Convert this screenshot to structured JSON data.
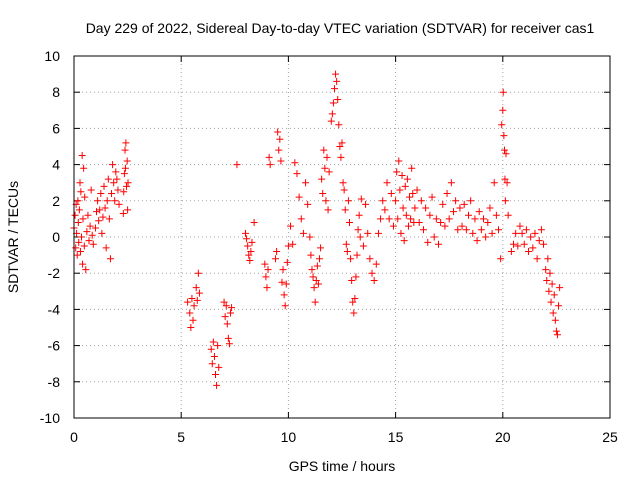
{
  "chart_data": {
    "type": "scatter",
    "title": "Day 229 of 2022, Sidereal Day-to-day VTEC variation (SDTVAR) for receiver cas1",
    "xlabel": "GPS time / hours",
    "ylabel": "SDTVAR / TECUs",
    "xlim": [
      0,
      25
    ],
    "ylim": [
      -10,
      10
    ],
    "xticks": [
      0,
      5,
      10,
      15,
      20,
      25
    ],
    "yticks": [
      -10,
      -8,
      -6,
      -4,
      -2,
      0,
      2,
      4,
      6,
      8,
      10
    ],
    "grid": true,
    "marker": "+",
    "color": "#ff0000",
    "series": [
      {
        "name": "cas1",
        "points": [
          [
            0.0,
            0.5
          ],
          [
            0.05,
            1.2
          ],
          [
            0.08,
            -0.6
          ],
          [
            0.1,
            1.8
          ],
          [
            0.12,
            0.2
          ],
          [
            0.15,
            -1.0
          ],
          [
            0.18,
            2.0
          ],
          [
            0.2,
            0.8
          ],
          [
            0.22,
            -0.3
          ],
          [
            0.25,
            1.5
          ],
          [
            0.28,
            3.0
          ],
          [
            0.3,
            -0.8
          ],
          [
            0.32,
            2.5
          ],
          [
            0.35,
            0.0
          ],
          [
            0.38,
            4.5
          ],
          [
            0.4,
            -1.5
          ],
          [
            0.42,
            1.0
          ],
          [
            0.45,
            3.8
          ],
          [
            0.48,
            -0.5
          ],
          [
            0.5,
            2.2
          ],
          [
            0.55,
            -1.8
          ],
          [
            0.6,
            0.3
          ],
          [
            0.65,
            1.2
          ],
          [
            0.7,
            -0.2
          ],
          [
            0.75,
            0.6
          ],
          [
            0.8,
            2.6
          ],
          [
            0.85,
            0.1
          ],
          [
            0.9,
            -0.4
          ],
          [
            1.0,
            0.5
          ],
          [
            1.05,
            1.4
          ],
          [
            1.1,
            2.0
          ],
          [
            1.15,
            0.9
          ],
          [
            1.2,
            1.5
          ],
          [
            1.25,
            2.4
          ],
          [
            1.3,
            0.2
          ],
          [
            1.35,
            1.1
          ],
          [
            1.4,
            2.8
          ],
          [
            1.45,
            1.6
          ],
          [
            1.5,
            -0.6
          ],
          [
            1.55,
            2.0
          ],
          [
            1.6,
            3.2
          ],
          [
            1.65,
            1.0
          ],
          [
            1.7,
            -1.2
          ],
          [
            1.75,
            2.4
          ],
          [
            1.8,
            4.0
          ],
          [
            1.85,
            3.0
          ],
          [
            1.9,
            2.0
          ],
          [
            1.95,
            3.6
          ],
          [
            2.0,
            3.2
          ],
          [
            2.05,
            2.6
          ],
          [
            2.1,
            1.8
          ],
          [
            2.3,
            1.3
          ],
          [
            2.32,
            2.5
          ],
          [
            2.35,
            3.5
          ],
          [
            2.38,
            4.8
          ],
          [
            2.4,
            3.8
          ],
          [
            2.42,
            5.2
          ],
          [
            2.45,
            2.8
          ],
          [
            2.48,
            4.2
          ],
          [
            2.5,
            1.5
          ],
          [
            2.52,
            3.0
          ],
          [
            5.3,
            -3.6
          ],
          [
            5.4,
            -4.2
          ],
          [
            5.45,
            -5.0
          ],
          [
            5.5,
            -3.4
          ],
          [
            5.55,
            -4.6
          ],
          [
            5.6,
            -3.8
          ],
          [
            5.7,
            -2.8
          ],
          [
            5.75,
            -3.5
          ],
          [
            5.8,
            -2.0
          ],
          [
            5.85,
            -3.1
          ],
          [
            6.4,
            -6.2
          ],
          [
            6.45,
            -7.0
          ],
          [
            6.5,
            -5.8
          ],
          [
            6.55,
            -6.6
          ],
          [
            6.6,
            -7.6
          ],
          [
            6.65,
            -8.2
          ],
          [
            6.7,
            -6.0
          ],
          [
            6.75,
            -7.2
          ],
          [
            7.0,
            -3.6
          ],
          [
            7.05,
            -4.4
          ],
          [
            7.1,
            -3.8
          ],
          [
            7.15,
            -4.8
          ],
          [
            7.2,
            -5.6
          ],
          [
            7.25,
            -5.9
          ],
          [
            7.3,
            -4.2
          ],
          [
            7.35,
            -3.9
          ],
          [
            7.6,
            4.0
          ],
          [
            8.0,
            0.2
          ],
          [
            8.05,
            -0.1
          ],
          [
            8.1,
            -0.5
          ],
          [
            8.15,
            -1.0
          ],
          [
            8.2,
            -1.3
          ],
          [
            8.25,
            -0.8
          ],
          [
            8.3,
            -0.3
          ],
          [
            8.4,
            0.8
          ],
          [
            8.9,
            -1.5
          ],
          [
            8.95,
            -2.2
          ],
          [
            9.0,
            -2.8
          ],
          [
            9.05,
            -1.8
          ],
          [
            9.1,
            4.4
          ],
          [
            9.15,
            4.0
          ],
          [
            9.4,
            -1.2
          ],
          [
            9.45,
            -0.8
          ],
          [
            9.5,
            5.8
          ],
          [
            9.55,
            4.8
          ],
          [
            9.6,
            5.4
          ],
          [
            9.65,
            4.2
          ],
          [
            9.7,
            -2.5
          ],
          [
            9.75,
            -1.8
          ],
          [
            9.8,
            -3.2
          ],
          [
            9.85,
            -3.8
          ],
          [
            9.9,
            -2.6
          ],
          [
            9.95,
            -1.4
          ],
          [
            10.0,
            -0.5
          ],
          [
            10.1,
            0.6
          ],
          [
            10.2,
            -0.4
          ],
          [
            10.3,
            4.1
          ],
          [
            10.4,
            3.5
          ],
          [
            10.5,
            2.2
          ],
          [
            10.6,
            1.0
          ],
          [
            10.7,
            0.2
          ],
          [
            10.8,
            3.0
          ],
          [
            10.9,
            1.8
          ],
          [
            11.0,
            0.0
          ],
          [
            11.05,
            -1.0
          ],
          [
            11.1,
            -1.8
          ],
          [
            11.15,
            -2.2
          ],
          [
            11.2,
            -2.8
          ],
          [
            11.25,
            -3.6
          ],
          [
            11.3,
            -2.4
          ],
          [
            11.35,
            -1.6
          ],
          [
            11.4,
            -2.6
          ],
          [
            11.45,
            -1.2
          ],
          [
            11.5,
            -0.6
          ],
          [
            11.55,
            3.2
          ],
          [
            11.6,
            2.4
          ],
          [
            11.65,
            4.8
          ],
          [
            11.7,
            3.8
          ],
          [
            11.75,
            2.0
          ],
          [
            11.8,
            4.4
          ],
          [
            11.85,
            1.5
          ],
          [
            11.9,
            3.6
          ],
          [
            12.0,
            6.4
          ],
          [
            12.05,
            6.8
          ],
          [
            12.1,
            7.4
          ],
          [
            12.15,
            8.2
          ],
          [
            12.2,
            9.0
          ],
          [
            12.25,
            8.6
          ],
          [
            12.3,
            7.6
          ],
          [
            12.35,
            6.2
          ],
          [
            12.4,
            5.0
          ],
          [
            12.45,
            4.4
          ],
          [
            12.5,
            5.2
          ],
          [
            12.55,
            3.0
          ],
          [
            12.6,
            2.6
          ],
          [
            12.65,
            1.5
          ],
          [
            12.7,
            -0.4
          ],
          [
            12.75,
            -0.8
          ],
          [
            12.8,
            2.0
          ],
          [
            12.85,
            0.8
          ],
          [
            12.9,
            -1.2
          ],
          [
            12.95,
            -2.4
          ],
          [
            13.0,
            -3.6
          ],
          [
            13.05,
            -4.2
          ],
          [
            13.1,
            -3.4
          ],
          [
            13.15,
            -2.2
          ],
          [
            13.2,
            -1.0
          ],
          [
            13.25,
            0.4
          ],
          [
            13.3,
            1.2
          ],
          [
            13.35,
            0.0
          ],
          [
            13.4,
            2.1
          ],
          [
            13.5,
            -0.5
          ],
          [
            13.6,
            1.8
          ],
          [
            13.7,
            0.2
          ],
          [
            13.8,
            -1.2
          ],
          [
            13.9,
            -2.0
          ],
          [
            14.0,
            -2.4
          ],
          [
            14.1,
            -1.5
          ],
          [
            14.2,
            0.2
          ],
          [
            14.3,
            1.0
          ],
          [
            14.4,
            2.0
          ],
          [
            14.5,
            1.5
          ],
          [
            14.6,
            3.0
          ],
          [
            14.7,
            1.0
          ],
          [
            14.8,
            2.4
          ],
          [
            14.9,
            0.6
          ],
          [
            15.0,
            2.0
          ],
          [
            15.05,
            3.6
          ],
          [
            15.1,
            1.0
          ],
          [
            15.15,
            4.2
          ],
          [
            15.2,
            2.6
          ],
          [
            15.25,
            0.2
          ],
          [
            15.3,
            3.4
          ],
          [
            15.35,
            1.6
          ],
          [
            15.4,
            -0.2
          ],
          [
            15.45,
            2.8
          ],
          [
            15.5,
            1.2
          ],
          [
            15.55,
            3.2
          ],
          [
            15.6,
            0.6
          ],
          [
            15.65,
            2.2
          ],
          [
            15.7,
            1.0
          ],
          [
            15.75,
            3.8
          ],
          [
            15.8,
            2.4
          ],
          [
            15.85,
            0.8
          ],
          [
            15.9,
            1.6
          ],
          [
            16.0,
            2.6
          ],
          [
            16.1,
            0.8
          ],
          [
            16.2,
            2.0
          ],
          [
            16.3,
            0.4
          ],
          [
            16.4,
            1.6
          ],
          [
            16.5,
            -0.3
          ],
          [
            16.6,
            1.2
          ],
          [
            16.7,
            2.2
          ],
          [
            16.8,
            0.0
          ],
          [
            16.9,
            1.0
          ],
          [
            17.0,
            -0.4
          ],
          [
            17.1,
            0.8
          ],
          [
            17.2,
            1.8
          ],
          [
            17.3,
            0.6
          ],
          [
            17.4,
            2.4
          ],
          [
            17.5,
            1.0
          ],
          [
            17.6,
            3.0
          ],
          [
            17.7,
            1.4
          ],
          [
            17.8,
            2.0
          ],
          [
            17.9,
            0.4
          ],
          [
            18.0,
            1.6
          ],
          [
            18.1,
            0.6
          ],
          [
            18.2,
            1.8
          ],
          [
            18.3,
            0.4
          ],
          [
            18.4,
            1.2
          ],
          [
            18.5,
            2.0
          ],
          [
            18.6,
            0.2
          ],
          [
            18.7,
            1.0
          ],
          [
            18.8,
            -0.2
          ],
          [
            18.9,
            1.4
          ],
          [
            19.0,
            0.4
          ],
          [
            19.1,
            1.0
          ],
          [
            19.2,
            0.0
          ],
          [
            19.3,
            0.8
          ],
          [
            19.4,
            1.6
          ],
          [
            19.5,
            0.2
          ],
          [
            19.6,
            3.0
          ],
          [
            19.7,
            1.2
          ],
          [
            19.8,
            0.4
          ],
          [
            19.9,
            -1.2
          ],
          [
            19.95,
            6.2
          ],
          [
            20.0,
            7.0
          ],
          [
            20.02,
            8.0
          ],
          [
            20.05,
            5.6
          ],
          [
            20.08,
            4.8
          ],
          [
            20.1,
            3.2
          ],
          [
            20.12,
            2.0
          ],
          [
            20.15,
            4.6
          ],
          [
            20.2,
            3.0
          ],
          [
            20.25,
            1.2
          ],
          [
            20.4,
            -0.8
          ],
          [
            20.5,
            -0.4
          ],
          [
            20.6,
            0.2
          ],
          [
            20.7,
            -0.5
          ],
          [
            20.8,
            0.6
          ],
          [
            20.9,
            0.2
          ],
          [
            21.0,
            -0.4
          ],
          [
            21.1,
            0.4
          ],
          [
            21.2,
            -0.8
          ],
          [
            21.3,
            0.0
          ],
          [
            21.4,
            -0.6
          ],
          [
            21.5,
            0.2
          ],
          [
            21.6,
            -1.2
          ],
          [
            21.7,
            -0.2
          ],
          [
            21.8,
            0.4
          ],
          [
            21.9,
            -0.4
          ],
          [
            22.0,
            -1.8
          ],
          [
            22.05,
            -2.4
          ],
          [
            22.1,
            -1.2
          ],
          [
            22.15,
            -3.0
          ],
          [
            22.2,
            -2.0
          ],
          [
            22.25,
            -3.6
          ],
          [
            22.3,
            -2.6
          ],
          [
            22.35,
            -4.2
          ],
          [
            22.4,
            -3.2
          ],
          [
            22.45,
            -4.6
          ],
          [
            22.5,
            -5.2
          ],
          [
            22.55,
            -5.4
          ],
          [
            22.6,
            -3.8
          ],
          [
            22.65,
            -2.8
          ]
        ]
      }
    ]
  }
}
